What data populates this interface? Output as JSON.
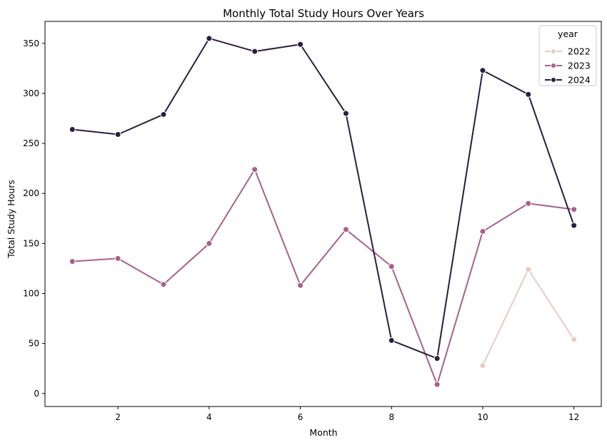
{
  "chart_data": {
    "type": "line",
    "title": "Monthly Total Study Hours Over Years",
    "xlabel": "Month",
    "ylabel": "Total Study Hours",
    "xlim": [
      0.4,
      12.6
    ],
    "ylim": [
      -13,
      372
    ],
    "xticks": [
      2,
      4,
      6,
      8,
      10,
      12
    ],
    "yticks": [
      0,
      50,
      100,
      150,
      200,
      250,
      300,
      350
    ],
    "grid": false,
    "legend": {
      "title": "year",
      "placement": "top-right"
    },
    "series": [
      {
        "name": "2022",
        "color": "#ebcac4",
        "points": [
          {
            "x": 10,
            "y": 28
          },
          {
            "x": 11,
            "y": 124
          },
          {
            "x": 12,
            "y": 54
          }
        ]
      },
      {
        "name": "2023",
        "color": "#a7618b",
        "points": [
          {
            "x": 1,
            "y": 132
          },
          {
            "x": 2,
            "y": 135
          },
          {
            "x": 3,
            "y": 109
          },
          {
            "x": 4,
            "y": 150
          },
          {
            "x": 5,
            "y": 224
          },
          {
            "x": 6,
            "y": 108
          },
          {
            "x": 7,
            "y": 164
          },
          {
            "x": 8,
            "y": 127
          },
          {
            "x": 9,
            "y": 9
          },
          {
            "x": 10,
            "y": 162
          },
          {
            "x": 11,
            "y": 190
          },
          {
            "x": 12,
            "y": 184
          }
        ]
      },
      {
        "name": "2024",
        "color": "#2b1d3e",
        "points": [
          {
            "x": 1,
            "y": 264
          },
          {
            "x": 2,
            "y": 259
          },
          {
            "x": 3,
            "y": 279
          },
          {
            "x": 4,
            "y": 355
          },
          {
            "x": 5,
            "y": 342
          },
          {
            "x": 6,
            "y": 349
          },
          {
            "x": 7,
            "y": 280
          },
          {
            "x": 8,
            "y": 53
          },
          {
            "x": 9,
            "y": 35
          },
          {
            "x": 10,
            "y": 323
          },
          {
            "x": 11,
            "y": 299
          },
          {
            "x": 12,
            "y": 168
          }
        ]
      }
    ]
  }
}
